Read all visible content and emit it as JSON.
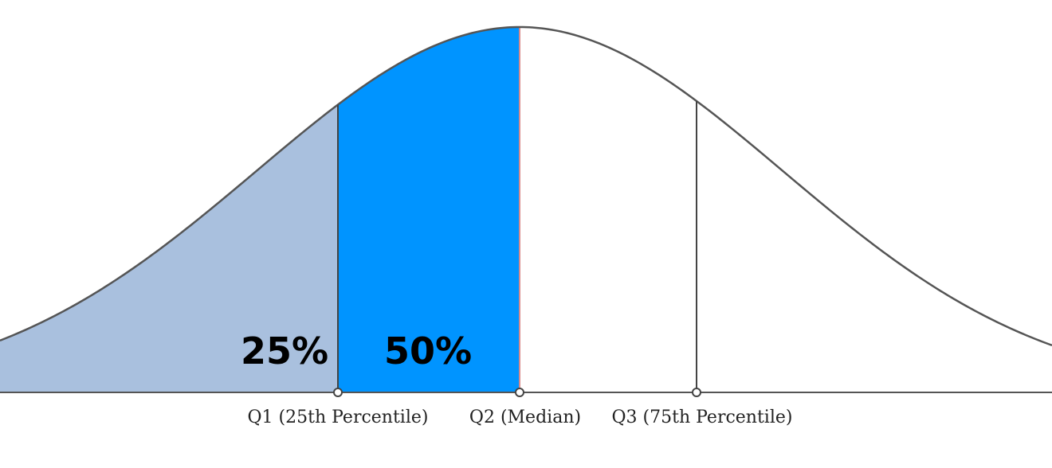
{
  "diagram": {
    "regions": [
      {
        "id": "lower",
        "label": "25%",
        "color": "#a9c0de",
        "edge": "#3b5f91"
      },
      {
        "id": "middle",
        "label": "50%",
        "color": "#0094ff",
        "edge": "#d98a8a"
      }
    ],
    "markers": [
      {
        "id": "q1",
        "label": "Q1 (25th Percentile)"
      },
      {
        "id": "q2",
        "label": "Q2 (Median)"
      },
      {
        "id": "q3",
        "label": "Q3 (75th Percentile)"
      }
    ],
    "colors": {
      "curve": "#555555",
      "axis": "#555555",
      "marker_fill": "#ffffff"
    }
  }
}
